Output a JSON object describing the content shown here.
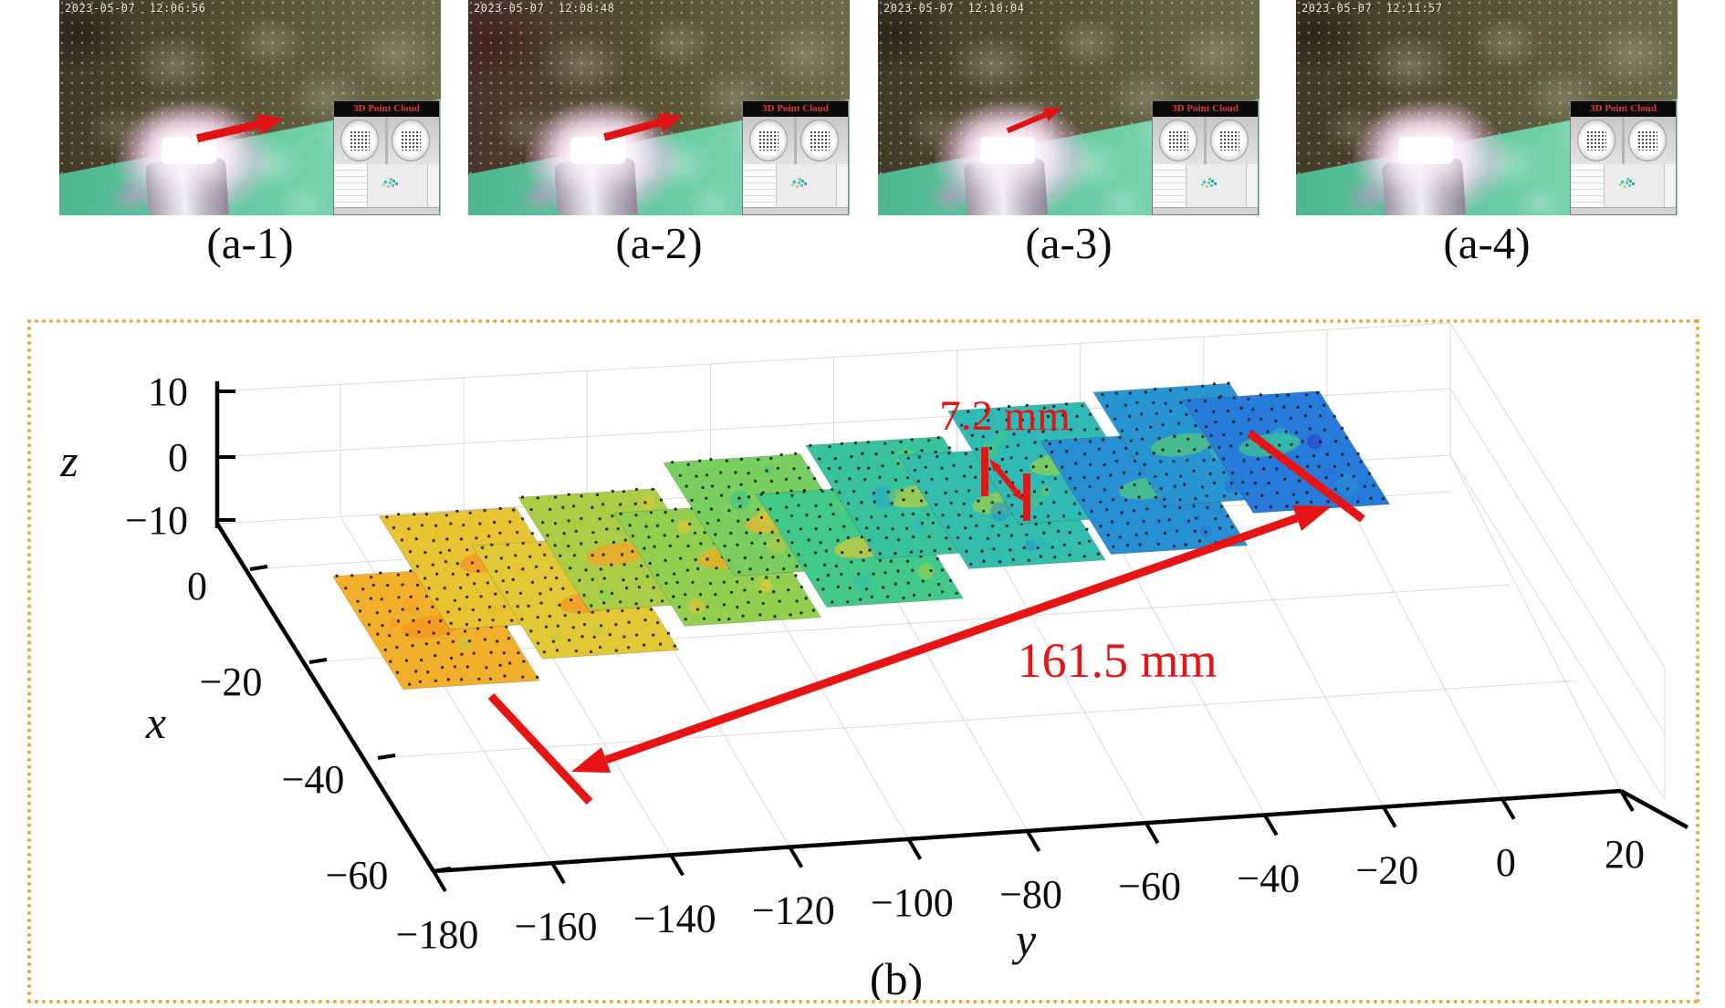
{
  "photos": [
    {
      "timestamp": "2023-05-07  12:06:56",
      "inset_title": "3D Point Cloud",
      "label": "(a-1)",
      "arrow": true
    },
    {
      "timestamp": "2023-05-07  12:08:48",
      "inset_title": "3D Point Cloud",
      "label": "(a-2)",
      "arrow": true
    },
    {
      "timestamp": "2023-05-07  12:10:04",
      "inset_title": "3D Point Cloud",
      "label": "(a-3)",
      "arrow": true
    },
    {
      "timestamp": "2023-05-07  12:11:57",
      "inset_title": "3D Point Cloud",
      "label": "(a-4)",
      "arrow": false
    }
  ],
  "figure_b": {
    "caption": "(b)",
    "annotation_gap": "7.2 mm",
    "annotation_length": "161.5 mm",
    "x_label": "x",
    "y_label": "y",
    "z_label": "z",
    "colors": {
      "annotation_red": "#e81414",
      "border_gold": "#e5a93d",
      "axis_black": "#000000"
    }
  },
  "chart_data": {
    "type": "scatter",
    "subtype": "3d-point-cloud-surface",
    "xlabel": "x",
    "ylabel": "y",
    "zlabel": "z",
    "x_ticks": [
      0,
      -20,
      -40,
      -60
    ],
    "x_tick_labels": [
      "0",
      "−20",
      "−40",
      "−60"
    ],
    "y_ticks": [
      -180,
      -160,
      -140,
      -120,
      -100,
      -80,
      -60,
      -40,
      -20,
      0,
      20
    ],
    "y_tick_labels": [
      "−180",
      "−160",
      "−140",
      "−120",
      "−100",
      "−80",
      "−60",
      "−40",
      "−20",
      "0",
      "20"
    ],
    "z_ticks": [
      10,
      0,
      -10
    ],
    "z_tick_labels": [
      "10",
      "0",
      "−10"
    ],
    "xlim": [
      -65,
      5
    ],
    "ylim": [
      -185,
      25
    ],
    "zlim": [
      -10,
      10
    ],
    "grid": true,
    "annotations": [
      {
        "text": "7.2 mm",
        "type": "step-height-measurement"
      },
      {
        "text": "161.5 mm",
        "type": "strip-length-measurement"
      }
    ],
    "surface": {
      "description": "stepped strip of overlapping square scan patches with jet colormap and black sample dots",
      "y_extent": [
        -170,
        -5
      ],
      "x_extent": [
        -30,
        5
      ],
      "z_extent": [
        -4,
        7
      ],
      "n_patches": 13,
      "patch_size_mm": 23,
      "color_trend": "orange-yellow at y=-160 through green-teal mid-strip to blue at y=-10"
    }
  }
}
